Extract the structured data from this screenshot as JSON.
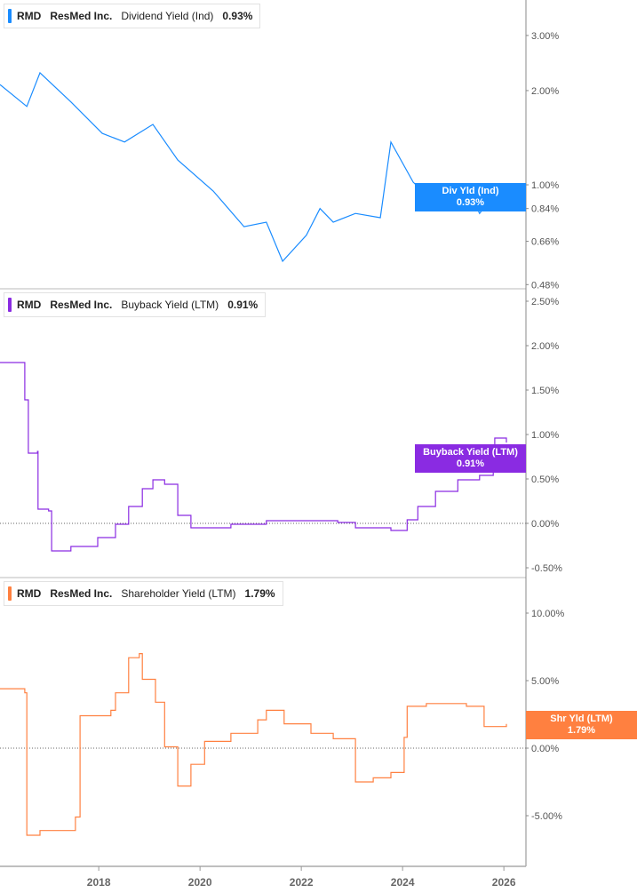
{
  "chart_data": [
    {
      "type": "line",
      "ticker": "RMD",
      "company": "ResMed Inc.",
      "metric": "Dividend Yield (Ind)",
      "latest": "0.93%",
      "tag_label": "Div Yld (Ind)",
      "color": "#1a8cff",
      "scale": "log",
      "yticks": [
        "3.00%",
        "2.00%",
        "1.00%",
        "0.84%",
        "0.66%",
        "0.48%"
      ],
      "ytick_values": [
        3,
        2,
        1,
        0.84,
        0.66,
        0.48
      ],
      "x": [
        2016.05,
        2016.58,
        2016.84,
        2017.45,
        2018.07,
        2018.51,
        2019.07,
        2019.56,
        2020.26,
        2020.87,
        2021.31,
        2021.63,
        2022.1,
        2022.37,
        2022.63,
        2023.07,
        2023.56,
        2023.77,
        2024.21,
        2024.65,
        2025.26,
        2025.52,
        2025.87,
        2026.05
      ],
      "y": [
        2.09,
        1.78,
        2.28,
        1.84,
        1.46,
        1.37,
        1.56,
        1.2,
        0.955,
        0.735,
        0.76,
        0.57,
        0.69,
        0.84,
        0.76,
        0.81,
        0.785,
        1.37,
        1.02,
        0.87,
        0.99,
        0.81,
        0.955,
        0.93
      ]
    },
    {
      "type": "line",
      "ticker": "RMD",
      "company": "ResMed Inc.",
      "metric": "Buyback Yield (LTM)",
      "latest": "0.91%",
      "tag_label": "Buyback Yield (LTM)",
      "color": "#8a2be2",
      "scale": "linear",
      "ylim": [
        -0.6,
        2.5
      ],
      "yticks": [
        "2.50%",
        "2.00%",
        "1.50%",
        "1.00%",
        "0.50%",
        "0.00%",
        "-0.50%"
      ],
      "ytick_values": [
        2.5,
        2,
        1.5,
        1,
        0.5,
        0,
        -0.5
      ],
      "x": [
        2016.05,
        2016.54,
        2016.61,
        2016.79,
        2016.8,
        2017.01,
        2017.07,
        2017.45,
        2017.98,
        2018.33,
        2018.59,
        2018.86,
        2019.07,
        2019.3,
        2019.56,
        2019.82,
        2020.61,
        2021.31,
        2022.72,
        2023.07,
        2023.77,
        2024.09,
        2024.3,
        2024.65,
        2025.09,
        2025.52,
        2025.79,
        2025.82,
        2026.05
      ],
      "y": [
        1.81,
        1.39,
        0.79,
        0.81,
        0.16,
        0.14,
        -0.31,
        -0.26,
        -0.16,
        -0.01,
        0.19,
        0.39,
        0.49,
        0.44,
        0.09,
        -0.05,
        -0.01,
        0.03,
        0.01,
        -0.05,
        -0.08,
        0.04,
        0.19,
        0.36,
        0.49,
        0.54,
        0.64,
        0.96,
        0.91
      ]
    },
    {
      "type": "line",
      "ticker": "RMD",
      "company": "ResMed Inc.",
      "metric": "Shareholder Yield (LTM)",
      "latest": "1.79%",
      "tag_label": "Shr Yld (LTM)",
      "color": "#ff8040",
      "scale": "linear",
      "ylim": [
        -8.7,
        10.5
      ],
      "yticks": [
        "10.00%",
        "5.00%",
        "0.00%",
        "-5.00%"
      ],
      "ytick_values": [
        10,
        5,
        0,
        -5
      ],
      "x": [
        2016.05,
        2016.54,
        2016.58,
        2016.84,
        2017.54,
        2017.63,
        2018.24,
        2018.33,
        2018.59,
        2018.8,
        2018.86,
        2019.12,
        2019.3,
        2019.56,
        2019.82,
        2020.09,
        2020.61,
        2021.14,
        2021.31,
        2021.66,
        2022.19,
        2022.63,
        2023.07,
        2023.42,
        2023.77,
        2024.03,
        2024.09,
        2024.47,
        2025.26,
        2025.61,
        2026.05
      ],
      "y": [
        4.4,
        4.1,
        -6.45,
        -6.1,
        -5.1,
        2.4,
        2.8,
        4.1,
        6.7,
        7.0,
        5.1,
        3.4,
        0.1,
        -2.8,
        -1.2,
        0.5,
        1.1,
        2.1,
        2.8,
        1.8,
        1.1,
        0.7,
        -2.5,
        -2.2,
        -1.8,
        0.8,
        3.1,
        3.3,
        3.1,
        1.6,
        1.79
      ]
    }
  ],
  "xaxis": {
    "ticks": [
      "2018",
      "2020",
      "2022",
      "2024",
      "2026"
    ],
    "tick_values": [
      2018,
      2020,
      2022,
      2024,
      2026
    ],
    "range": [
      2016.05,
      2026.5
    ]
  }
}
